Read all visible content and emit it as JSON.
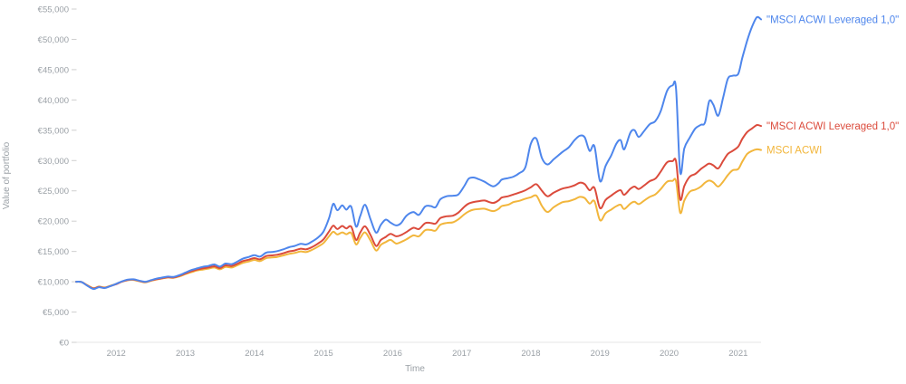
{
  "chart_data": {
    "type": "line",
    "title": "",
    "xlabel": "Time",
    "ylabel": "Value of portfolio",
    "xlim": [
      2011.42,
      2021.33
    ],
    "ylim": [
      0,
      55000
    ],
    "grid": false,
    "legend_position": "right-of-line-ends",
    "x_ticks": [
      2012,
      2013,
      2014,
      2015,
      2016,
      2017,
      2018,
      2019,
      2020,
      2021
    ],
    "y_ticks": [
      0,
      5000,
      10000,
      15000,
      20000,
      25000,
      30000,
      35000,
      40000,
      45000,
      50000,
      55000
    ],
    "y_tick_labels": [
      "€0",
      "€5,000",
      "€10,000",
      "€15,000",
      "€20,000",
      "€25,000",
      "€30,000",
      "€35,000",
      "€40,000",
      "€45,000",
      "€50,000",
      "€55,000"
    ],
    "x": [
      2011.42,
      2011.5,
      2011.58,
      2011.67,
      2011.75,
      2011.83,
      2011.92,
      2012.0,
      2012.08,
      2012.17,
      2012.25,
      2012.33,
      2012.42,
      2012.5,
      2012.58,
      2012.67,
      2012.75,
      2012.83,
      2012.92,
      2013.0,
      2013.08,
      2013.17,
      2013.25,
      2013.33,
      2013.42,
      2013.5,
      2013.58,
      2013.67,
      2013.75,
      2013.83,
      2013.92,
      2014.0,
      2014.08,
      2014.17,
      2014.25,
      2014.33,
      2014.42,
      2014.5,
      2014.58,
      2014.67,
      2014.75,
      2014.83,
      2014.92,
      2015.0,
      2015.08,
      2015.14,
      2015.2,
      2015.27,
      2015.33,
      2015.4,
      2015.47,
      2015.53,
      2015.6,
      2015.68,
      2015.76,
      2015.83,
      2015.9,
      2015.97,
      2016.05,
      2016.12,
      2016.2,
      2016.3,
      2016.38,
      2016.47,
      2016.55,
      2016.62,
      2016.69,
      2016.78,
      2016.87,
      2016.95,
      2017.04,
      2017.1,
      2017.17,
      2017.25,
      2017.33,
      2017.45,
      2017.53,
      2017.58,
      2017.67,
      2017.75,
      2017.83,
      2017.92,
      2018.0,
      2018.08,
      2018.16,
      2018.24,
      2018.33,
      2018.45,
      2018.55,
      2018.63,
      2018.71,
      2018.78,
      2018.85,
      2018.92,
      2019.0,
      2019.08,
      2019.16,
      2019.24,
      2019.3,
      2019.35,
      2019.44,
      2019.5,
      2019.56,
      2019.64,
      2019.72,
      2019.8,
      2019.88,
      2019.97,
      2020.05,
      2020.1,
      2020.16,
      2020.22,
      2020.3,
      2020.38,
      2020.46,
      2020.52,
      2020.58,
      2020.64,
      2020.71,
      2020.78,
      2020.85,
      2020.92,
      2021.0,
      2021.06,
      2021.13,
      2021.2,
      2021.27,
      2021.33
    ],
    "series": [
      {
        "name": "msci-acwi-leveraged-blue",
        "label": "\"MSCI ACWI Leveraged 1,0\"",
        "color": "#4e86ec",
        "values": [
          10000,
          9950,
          9350,
          8800,
          9100,
          8950,
          9300,
          9650,
          10050,
          10350,
          10400,
          10200,
          10000,
          10250,
          10500,
          10700,
          10850,
          10800,
          11100,
          11500,
          11900,
          12200,
          12450,
          12600,
          12850,
          12500,
          13000,
          12900,
          13300,
          13800,
          14100,
          14400,
          14150,
          14800,
          14900,
          15050,
          15350,
          15700,
          15900,
          16250,
          16150,
          16600,
          17300,
          18300,
          20500,
          22850,
          21800,
          22600,
          21900,
          22400,
          19100,
          20800,
          22700,
          20300,
          18100,
          19400,
          20250,
          19750,
          19300,
          19650,
          20900,
          21500,
          21050,
          22400,
          22500,
          22300,
          23600,
          24100,
          24200,
          24400,
          25850,
          27000,
          27200,
          26900,
          26500,
          25750,
          26250,
          26850,
          27100,
          27350,
          27900,
          28900,
          32800,
          33600,
          30400,
          29350,
          30200,
          31350,
          32200,
          33350,
          34100,
          33800,
          31600,
          32350,
          26600,
          29100,
          30800,
          32850,
          33350,
          31850,
          34600,
          35000,
          33900,
          34900,
          36000,
          36500,
          38200,
          41500,
          42400,
          41800,
          28100,
          32000,
          33800,
          35300,
          35900,
          36300,
          39800,
          39200,
          37400,
          40300,
          43500,
          44000,
          44300,
          47000,
          49800,
          52100,
          53650,
          53300
        ]
      },
      {
        "name": "msci-acwi-leveraged-red",
        "label": "\"MSCI ACWI Leveraged 1,0\"",
        "color": "#db4b3c",
        "values": [
          10000,
          9950,
          9400,
          8900,
          9150,
          9000,
          9300,
          9600,
          10000,
          10300,
          10350,
          10150,
          9950,
          10200,
          10400,
          10600,
          10750,
          10700,
          11000,
          11350,
          11700,
          12000,
          12200,
          12350,
          12550,
          12250,
          12700,
          12600,
          12950,
          13400,
          13650,
          13900,
          13700,
          14250,
          14350,
          14450,
          14700,
          15000,
          15150,
          15450,
          15350,
          15700,
          16300,
          17000,
          18300,
          19250,
          18700,
          19200,
          18800,
          19100,
          16900,
          18100,
          19150,
          17700,
          15900,
          16900,
          17400,
          17900,
          17500,
          17700,
          18200,
          18900,
          18700,
          19650,
          19700,
          19600,
          20500,
          20800,
          20900,
          21400,
          22400,
          22900,
          23150,
          23300,
          23400,
          23000,
          23400,
          23900,
          24100,
          24400,
          24700,
          25100,
          25600,
          26100,
          25000,
          24100,
          24700,
          25350,
          25600,
          25900,
          26350,
          26100,
          25100,
          25500,
          22150,
          23500,
          24200,
          24850,
          25100,
          24350,
          25350,
          25700,
          25300,
          25900,
          26600,
          27000,
          28200,
          29700,
          29900,
          29850,
          23600,
          25800,
          27350,
          27800,
          28600,
          29100,
          29500,
          29200,
          28700,
          29900,
          31100,
          31600,
          32300,
          33600,
          34700,
          35300,
          35850,
          35700
        ]
      },
      {
        "name": "msci-acwi",
        "label": "MSCI ACWI",
        "color": "#f2b63c",
        "values": [
          10000,
          9950,
          9450,
          8950,
          9200,
          9050,
          9350,
          9650,
          10000,
          10250,
          10300,
          10100,
          9900,
          10150,
          10350,
          10550,
          10700,
          10650,
          10900,
          11250,
          11550,
          11850,
          12000,
          12150,
          12350,
          12050,
          12450,
          12350,
          12700,
          13100,
          13350,
          13600,
          13400,
          13900,
          14000,
          14100,
          14350,
          14600,
          14750,
          15000,
          14900,
          15250,
          15800,
          16400,
          17500,
          18250,
          17800,
          18150,
          17850,
          18050,
          16150,
          17200,
          18150,
          16800,
          15150,
          16100,
          16550,
          16900,
          16300,
          16550,
          17000,
          17650,
          17500,
          18500,
          18550,
          18450,
          19400,
          19700,
          19800,
          20300,
          21150,
          21600,
          21900,
          22000,
          22050,
          21650,
          22000,
          22500,
          22700,
          23150,
          23350,
          23700,
          23950,
          24200,
          22500,
          21500,
          22300,
          23100,
          23300,
          23600,
          24000,
          23800,
          22900,
          23300,
          20150,
          21300,
          21900,
          22500,
          22700,
          22000,
          22900,
          23200,
          22800,
          23400,
          24000,
          24400,
          25300,
          26500,
          26650,
          26600,
          21400,
          23400,
          24850,
          25200,
          25700,
          26350,
          26700,
          26400,
          25700,
          26500,
          27600,
          28400,
          28600,
          29850,
          31100,
          31600,
          31850,
          31750
        ]
      }
    ]
  },
  "axes": {
    "x_title": "Time",
    "y_title": "Value of portfolio"
  }
}
